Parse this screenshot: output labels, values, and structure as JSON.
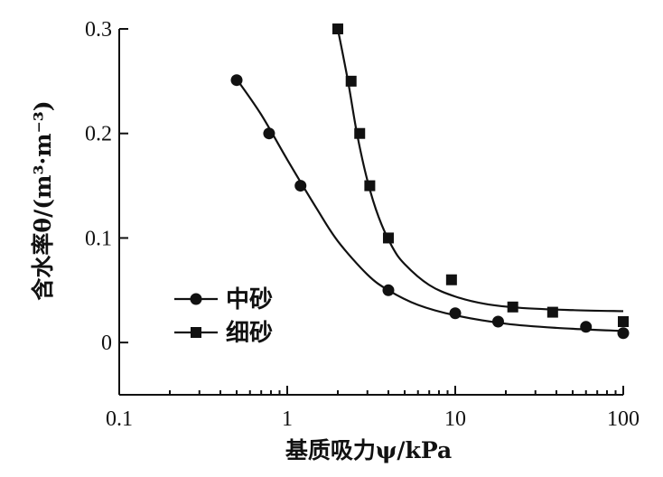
{
  "chart_data": {
    "type": "scatter",
    "x_scale": "log",
    "xlim": [
      0.1,
      100
    ],
    "ylim": [
      -0.05,
      0.3
    ],
    "xlabel": "基质吸力ψ/kPa",
    "ylabel": "含水率θ/(m³·m⁻³)",
    "x_ticks": [
      {
        "value": 0.1,
        "label": "0.1"
      },
      {
        "value": 1,
        "label": "1"
      },
      {
        "value": 10,
        "label": "10"
      },
      {
        "value": 100,
        "label": "100"
      }
    ],
    "y_ticks": [
      {
        "value": 0,
        "label": "0"
      },
      {
        "value": 0.1,
        "label": "0.1"
      },
      {
        "value": 0.2,
        "label": "0.2"
      },
      {
        "value": 0.3,
        "label": "0.3"
      }
    ],
    "legend_position": "left",
    "series": [
      {
        "name": "中砂",
        "marker": "circle",
        "points": [
          {
            "x": 0.5,
            "y": 0.251
          },
          {
            "x": 0.78,
            "y": 0.2
          },
          {
            "x": 1.2,
            "y": 0.15
          },
          {
            "x": 4.0,
            "y": 0.05
          },
          {
            "x": 10.0,
            "y": 0.028
          },
          {
            "x": 18.0,
            "y": 0.02
          },
          {
            "x": 60.0,
            "y": 0.015
          },
          {
            "x": 100.0,
            "y": 0.009
          }
        ],
        "fit": [
          {
            "x": 0.5,
            "y": 0.252
          },
          {
            "x": 0.7,
            "y": 0.218
          },
          {
            "x": 1.0,
            "y": 0.175
          },
          {
            "x": 1.5,
            "y": 0.128
          },
          {
            "x": 2.0,
            "y": 0.097
          },
          {
            "x": 3.0,
            "y": 0.065
          },
          {
            "x": 4.0,
            "y": 0.05
          },
          {
            "x": 6.0,
            "y": 0.036
          },
          {
            "x": 10.0,
            "y": 0.026
          },
          {
            "x": 20.0,
            "y": 0.018
          },
          {
            "x": 40.0,
            "y": 0.014
          },
          {
            "x": 100.0,
            "y": 0.011
          }
        ]
      },
      {
        "name": "细砂",
        "marker": "square",
        "points": [
          {
            "x": 2.0,
            "y": 0.3
          },
          {
            "x": 2.4,
            "y": 0.25
          },
          {
            "x": 2.7,
            "y": 0.2
          },
          {
            "x": 3.1,
            "y": 0.15
          },
          {
            "x": 4.0,
            "y": 0.1
          },
          {
            "x": 9.5,
            "y": 0.06
          },
          {
            "x": 22.0,
            "y": 0.034
          },
          {
            "x": 38.0,
            "y": 0.029
          },
          {
            "x": 100.0,
            "y": 0.02
          }
        ],
        "fit": [
          {
            "x": 2.0,
            "y": 0.3
          },
          {
            "x": 2.3,
            "y": 0.25
          },
          {
            "x": 2.6,
            "y": 0.2
          },
          {
            "x": 3.0,
            "y": 0.155
          },
          {
            "x": 3.5,
            "y": 0.12
          },
          {
            "x": 4.2,
            "y": 0.092
          },
          {
            "x": 5.0,
            "y": 0.075
          },
          {
            "x": 7.0,
            "y": 0.055
          },
          {
            "x": 10.0,
            "y": 0.044
          },
          {
            "x": 15.0,
            "y": 0.037
          },
          {
            "x": 25.0,
            "y": 0.033
          },
          {
            "x": 50.0,
            "y": 0.031
          },
          {
            "x": 100.0,
            "y": 0.03
          }
        ]
      }
    ]
  }
}
